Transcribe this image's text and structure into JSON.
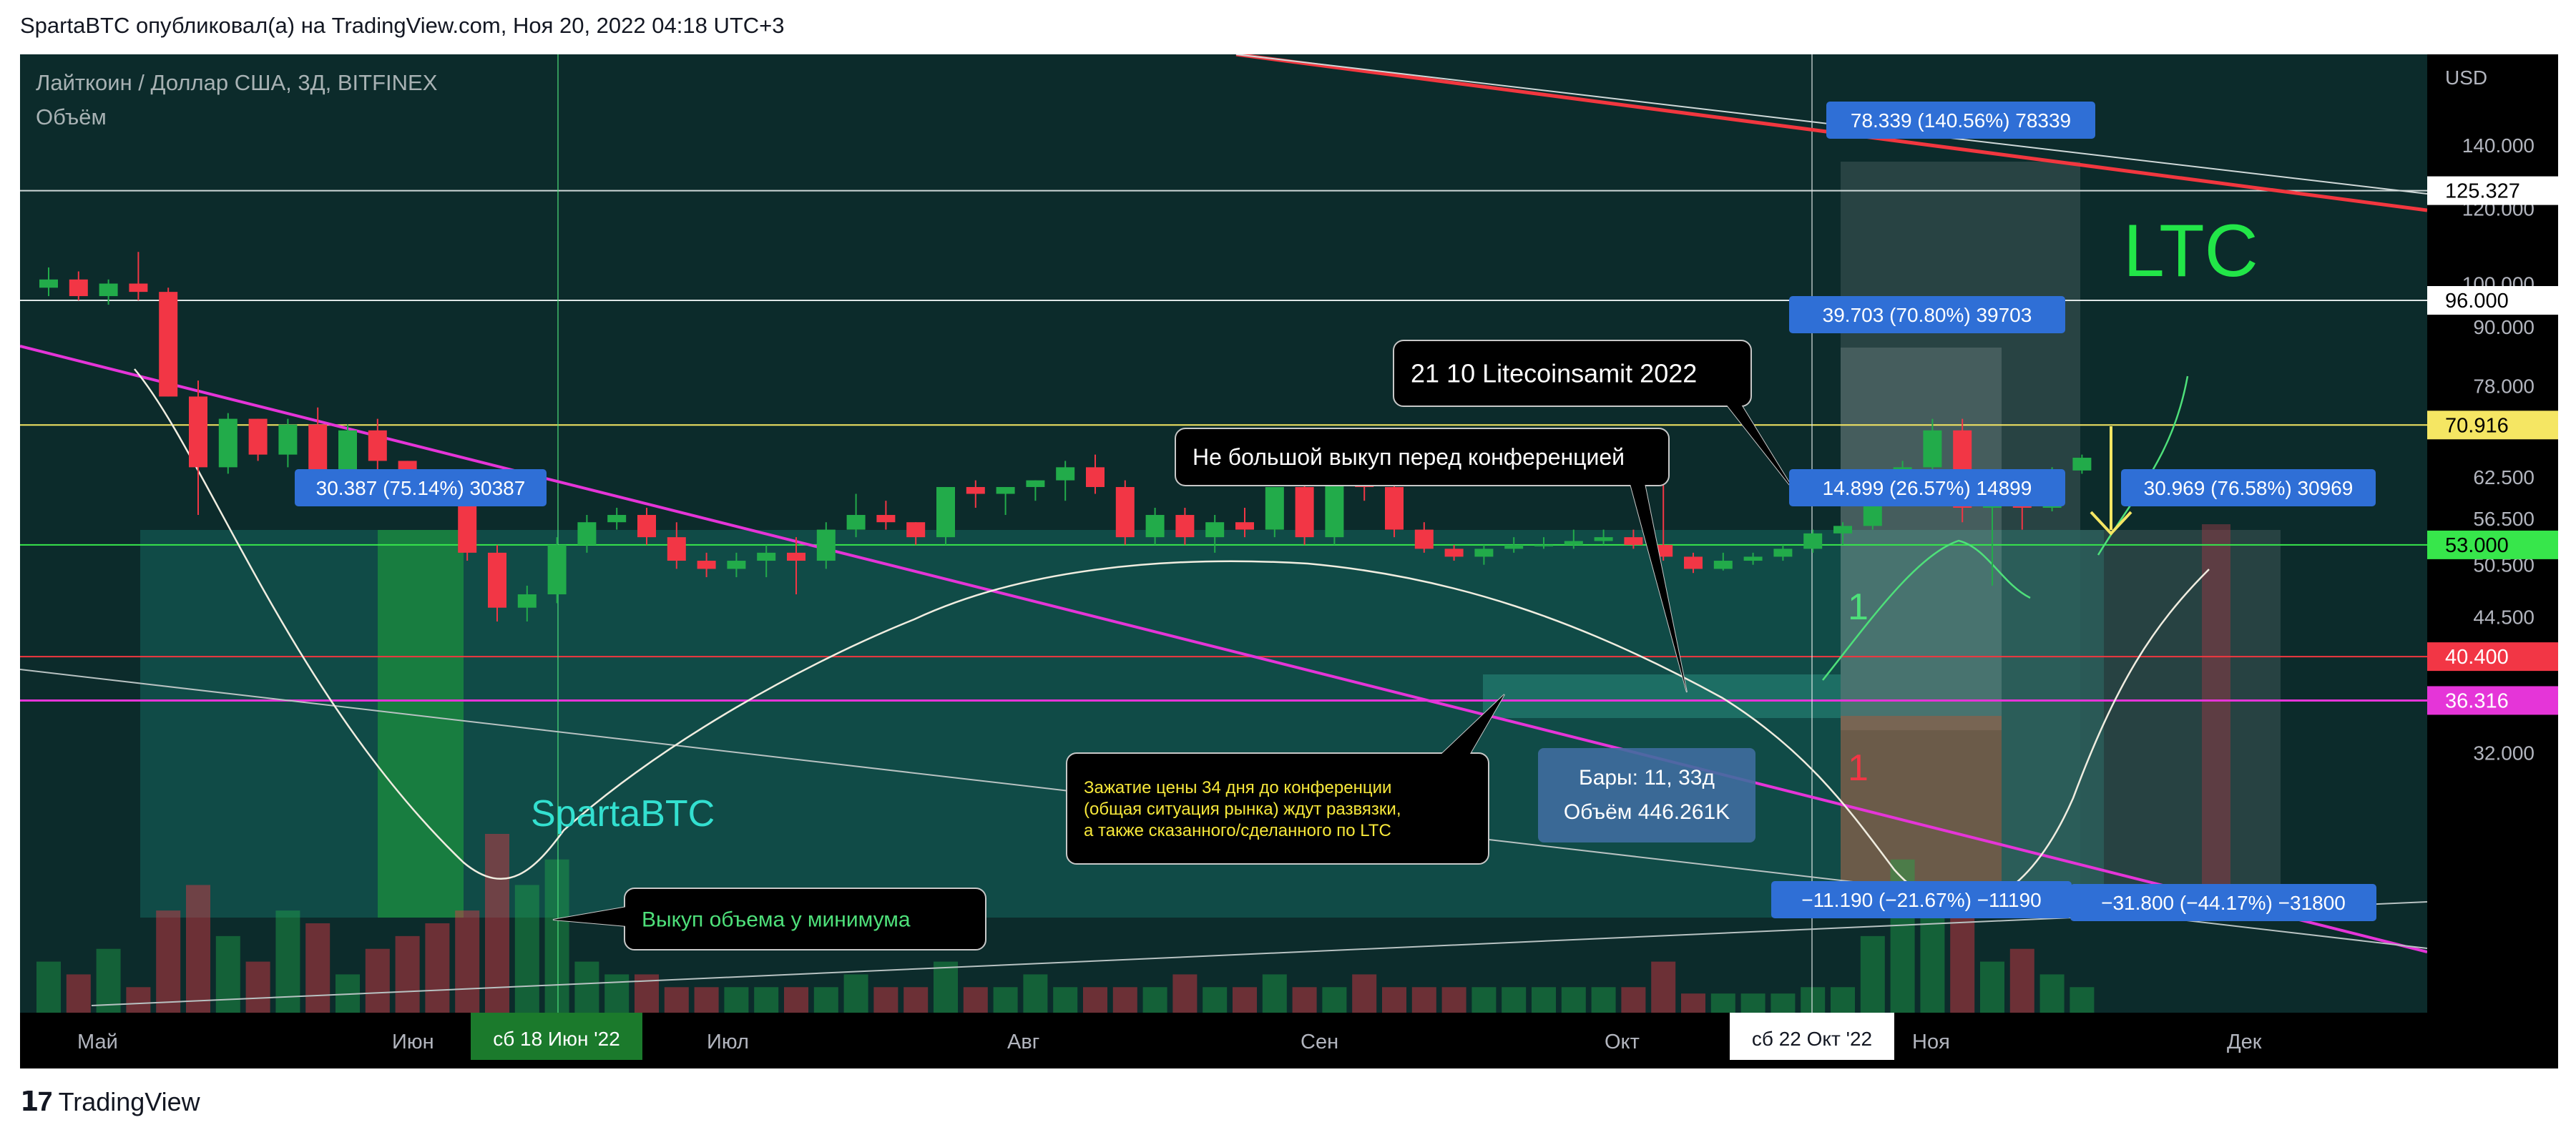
{
  "header": {
    "text": "SpartaBTC опубликовал(а) на TradingView.com, Ноя 20, 2022 04:18 UTC+3"
  },
  "symbol": {
    "title": "Лайткоин / Доллар США, 3Д, BITFINEX",
    "volume_label": "Объём"
  },
  "footer": {
    "logo_text": "TradingView"
  },
  "colors": {
    "background": "#0c2b2b",
    "up": "#22ab4a",
    "down": "#f23645",
    "trendline": "#e535d8",
    "resistance": "#f2373f",
    "yellow_level": "#f5e663",
    "green_level": "#37e64b"
  },
  "chart_data": {
    "type": "candlestick",
    "y_axis_unit": "USD",
    "y_scale": "log",
    "y_ticks": [
      140,
      120,
      100,
      90,
      78,
      62.5,
      56.5,
      50.5,
      44.5,
      32
    ],
    "y_tick_labels": [
      "140.000",
      "120.000",
      "100.000",
      "90.000",
      "78.000",
      "62.500",
      "56.500",
      "50.500",
      "44.500",
      "32.000"
    ],
    "x_ticks": [
      "Май",
      "Июн",
      "Июл",
      "Авг",
      "Сен",
      "Окт",
      "Ноя",
      "Дек"
    ],
    "crosshair_dates": [
      "сб 18 Июн '22",
      "сб 22 Окт '22"
    ],
    "price_labels": [
      {
        "value": 125.327,
        "label": "125.327",
        "style": "white"
      },
      {
        "value": 96.0,
        "label": "96.000",
        "style": "white"
      },
      {
        "value": 70.916,
        "label": "70.916",
        "style": "yellow"
      },
      {
        "value": 53.0,
        "label": "53.000",
        "style": "green"
      },
      {
        "value": 40.4,
        "label": "40.400",
        "style": "red"
      },
      {
        "value": 36.316,
        "label": "36.316",
        "style": "magenta"
      }
    ],
    "candles": [
      {
        "o": 99,
        "h": 104,
        "l": 97,
        "c": 101
      },
      {
        "o": 101,
        "h": 103,
        "l": 96,
        "c": 97
      },
      {
        "o": 97,
        "h": 101,
        "l": 95,
        "c": 100
      },
      {
        "o": 100,
        "h": 108,
        "l": 96,
        "c": 98
      },
      {
        "o": 98,
        "h": 99,
        "l": 76,
        "c": 76
      },
      {
        "o": 76,
        "h": 79,
        "l": 57,
        "c": 64
      },
      {
        "o": 64,
        "h": 73,
        "l": 63,
        "c": 72
      },
      {
        "o": 72,
        "h": 72,
        "l": 65,
        "c": 66
      },
      {
        "o": 66,
        "h": 72,
        "l": 64,
        "c": 71
      },
      {
        "o": 71,
        "h": 74,
        "l": 60,
        "c": 62
      },
      {
        "o": 62,
        "h": 71,
        "l": 61,
        "c": 70
      },
      {
        "o": 70,
        "h": 72,
        "l": 63,
        "c": 65
      },
      {
        "o": 65,
        "h": 65,
        "l": 62,
        "c": 63
      },
      {
        "o": 63,
        "h": 63,
        "l": 60,
        "c": 61
      },
      {
        "o": 61,
        "h": 63,
        "l": 51,
        "c": 52
      },
      {
        "o": 52,
        "h": 53,
        "l": 44,
        "c": 45.5
      },
      {
        "o": 45.5,
        "h": 48,
        "l": 44,
        "c": 47
      },
      {
        "o": 47,
        "h": 54,
        "l": 46,
        "c": 53
      },
      {
        "o": 53,
        "h": 57,
        "l": 52,
        "c": 56
      },
      {
        "o": 56,
        "h": 58,
        "l": 55,
        "c": 57
      },
      {
        "o": 57,
        "h": 58,
        "l": 53,
        "c": 54
      },
      {
        "o": 54,
        "h": 56,
        "l": 50,
        "c": 51
      },
      {
        "o": 51,
        "h": 52,
        "l": 49,
        "c": 50
      },
      {
        "o": 50,
        "h": 52,
        "l": 49,
        "c": 51
      },
      {
        "o": 51,
        "h": 53,
        "l": 49,
        "c": 52
      },
      {
        "o": 52,
        "h": 54,
        "l": 47,
        "c": 51
      },
      {
        "o": 51,
        "h": 56,
        "l": 50,
        "c": 55
      },
      {
        "o": 55,
        "h": 60,
        "l": 54,
        "c": 57
      },
      {
        "o": 57,
        "h": 59,
        "l": 55,
        "c": 56
      },
      {
        "o": 56,
        "h": 56,
        "l": 53,
        "c": 54
      },
      {
        "o": 54,
        "h": 61,
        "l": 53,
        "c": 61
      },
      {
        "o": 61,
        "h": 62,
        "l": 58,
        "c": 60
      },
      {
        "o": 60,
        "h": 61,
        "l": 57,
        "c": 61
      },
      {
        "o": 61,
        "h": 62,
        "l": 59,
        "c": 62
      },
      {
        "o": 62,
        "h": 65,
        "l": 59,
        "c": 64
      },
      {
        "o": 64,
        "h": 66,
        "l": 60,
        "c": 61
      },
      {
        "o": 61,
        "h": 62,
        "l": 53,
        "c": 54
      },
      {
        "o": 54,
        "h": 58,
        "l": 53,
        "c": 57
      },
      {
        "o": 57,
        "h": 58,
        "l": 53,
        "c": 54
      },
      {
        "o": 54,
        "h": 57,
        "l": 52,
        "c": 56
      },
      {
        "o": 56,
        "h": 58,
        "l": 54,
        "c": 55
      },
      {
        "o": 55,
        "h": 61,
        "l": 54,
        "c": 61
      },
      {
        "o": 61,
        "h": 62,
        "l": 53,
        "c": 54
      },
      {
        "o": 54,
        "h": 63,
        "l": 53,
        "c": 62
      },
      {
        "o": 62,
        "h": 63,
        "l": 59,
        "c": 61
      },
      {
        "o": 61,
        "h": 67,
        "l": 54,
        "c": 55
      },
      {
        "o": 55,
        "h": 56,
        "l": 52,
        "c": 52.5
      },
      {
        "o": 52.5,
        "h": 53,
        "l": 51,
        "c": 51.5
      },
      {
        "o": 51.5,
        "h": 53,
        "l": 50.5,
        "c": 52.5
      },
      {
        "o": 52.5,
        "h": 54,
        "l": 52,
        "c": 53
      },
      {
        "o": 53,
        "h": 54,
        "l": 52.5,
        "c": 53
      },
      {
        "o": 53,
        "h": 55,
        "l": 52.5,
        "c": 53.5
      },
      {
        "o": 53.5,
        "h": 55,
        "l": 53,
        "c": 54
      },
      {
        "o": 54,
        "h": 55,
        "l": 52.5,
        "c": 53
      },
      {
        "o": 53,
        "h": 62,
        "l": 51,
        "c": 51.5
      },
      {
        "o": 51.5,
        "h": 52,
        "l": 49.5,
        "c": 50
      },
      {
        "o": 50,
        "h": 52,
        "l": 49.8,
        "c": 51
      },
      {
        "o": 51,
        "h": 52,
        "l": 50.5,
        "c": 51.5
      },
      {
        "o": 51.5,
        "h": 53,
        "l": 51,
        "c": 52.5
      },
      {
        "o": 52.5,
        "h": 55,
        "l": 52,
        "c": 54.5
      },
      {
        "o": 54.5,
        "h": 56,
        "l": 53,
        "c": 55.5
      },
      {
        "o": 55.5,
        "h": 60,
        "l": 55,
        "c": 59.5
      },
      {
        "o": 59.5,
        "h": 65,
        "l": 59,
        "c": 64
      },
      {
        "o": 64,
        "h": 72,
        "l": 63,
        "c": 70
      },
      {
        "o": 70,
        "h": 72,
        "l": 56,
        "c": 58
      },
      {
        "o": 58,
        "h": 63,
        "l": 48,
        "c": 62
      },
      {
        "o": 62,
        "h": 63,
        "l": 55,
        "c": 58
      },
      {
        "o": 58,
        "h": 64,
        "l": 57.5,
        "c": 63.5
      },
      {
        "o": 63.5,
        "h": 66,
        "l": 63,
        "c": 65.5
      }
    ],
    "volume": [
      4,
      3,
      5,
      2,
      8,
      10,
      6,
      4,
      8,
      7,
      3,
      5,
      6,
      7,
      8,
      14,
      10,
      12,
      4,
      3,
      3,
      2,
      2,
      2,
      2,
      2,
      2,
      3,
      2,
      2,
      4,
      2,
      2,
      3,
      2,
      2,
      2,
      2,
      3,
      2,
      2,
      3,
      2,
      2,
      3,
      2,
      2,
      2,
      2,
      2,
      2,
      2,
      2,
      2,
      4,
      1.5,
      1.5,
      1.5,
      1.5,
      2,
      2,
      6,
      12,
      10,
      8,
      4,
      5,
      3,
      2
    ],
    "annotations": [
      {
        "id": "ann-conference",
        "text": "21 10 Litecoinsamit 2022"
      },
      {
        "id": "ann-buyout",
        "text": "Не большой выкуп перед конференцией"
      },
      {
        "id": "ann-squeeze",
        "lines": [
          "Зажатие цены 34 дня до конференции",
          "(общая ситуация рынка) ждут развязки,",
          "а также сказанного/сделанного по LTC"
        ]
      },
      {
        "id": "ann-volume-min",
        "text": "Выкуп объема у минимума"
      },
      {
        "id": "ann-bars",
        "lines": [
          "Бары: 11, 33д",
          "Объём 446.261K"
        ]
      },
      {
        "id": "lbl-ltc",
        "text": "LTC"
      },
      {
        "id": "lbl-sparta",
        "text": "SpartaBTC"
      },
      {
        "id": "lbl-one-green",
        "text": "1"
      },
      {
        "id": "lbl-one-red",
        "text": "1"
      }
    ],
    "measure_labels": [
      "78.339 (140.56%) 78339",
      "39.703 (70.80%) 39703",
      "14.899 (26.57%) 14899",
      "30.387 (75.14%) 30387",
      "30.969 (76.58%) 30969",
      "−11.190 (−21.67%) −11190",
      "−31.800 (−44.17%) −31800"
    ]
  }
}
